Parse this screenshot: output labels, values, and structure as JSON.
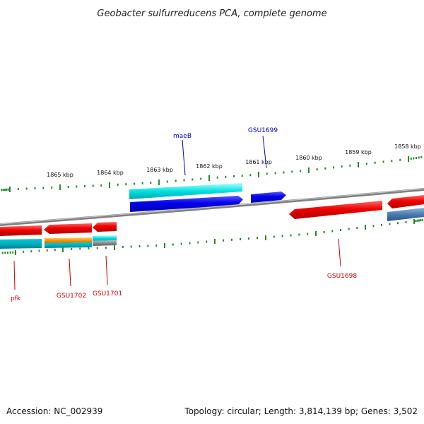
{
  "title": "Geobacter sulfurreducens PCA, complete genome",
  "footer": {
    "accession": "Accession: NC_002939",
    "summary": "Topology: circular; Length: 3,814,139 bp; Genes: 3,502"
  },
  "scale": {
    "unit": "kbp",
    "labels": [
      "1865 kbp",
      "1864 kbp",
      "1863 kbp",
      "1862 kbp",
      "1861 kbp",
      "1860 kbp",
      "1859 kbp",
      "1858 kbp"
    ]
  },
  "genes": {
    "forward": [
      {
        "label": "maeB",
        "color": "#0000dd"
      },
      {
        "label": "GSU1699",
        "color": "#0000dd"
      }
    ],
    "reverse": [
      {
        "label": "pfk",
        "color": "#dd0000"
      },
      {
        "label": "GSU1702",
        "color": "#dd0000"
      },
      {
        "label": "GSU1701",
        "color": "#dd0000"
      },
      {
        "label": "GSU1698",
        "color": "#dd0000"
      }
    ]
  },
  "colors": {
    "backbone": "#808080",
    "scale_ticks": "#2a8a2a",
    "forward_gene": "#0000ee",
    "forward_feature": "#00dddd",
    "reverse_gene": "#ee0000",
    "reverse_feature": "#00bbcc",
    "misc_feature": "#ff9900",
    "other_feature": "#4a7ab0"
  }
}
